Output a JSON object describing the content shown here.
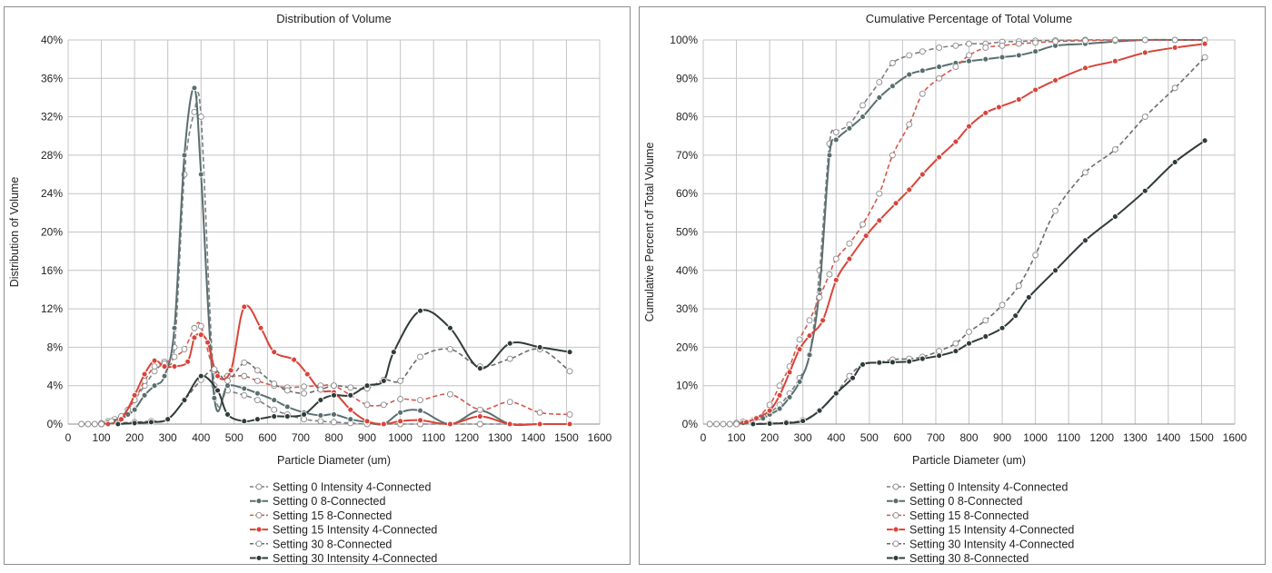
{
  "chart_data": [
    {
      "type": "line",
      "title": "Distribution of Volume",
      "xlabel": "Particle Diameter (um)",
      "ylabel": "Distribution of Volume",
      "xlim": [
        0,
        1600
      ],
      "ylim": [
        0,
        40
      ],
      "x_ticks": [
        "0",
        "100",
        "200",
        "300",
        "400",
        "500",
        "600",
        "700",
        "800",
        "900",
        "1000",
        "1100",
        "1200",
        "1300",
        "1400",
        "1500",
        "1600"
      ],
      "y_ticks": [
        "0%",
        "4%",
        "8%",
        "12%",
        "16%",
        "20%",
        "24%",
        "28%",
        "32%",
        "36%",
        "40%"
      ],
      "grid": true,
      "legend_position": "bottom",
      "series": [
        {
          "name": "Setting 0 Intensity 4-Connected",
          "color": "#7f7f7f",
          "dashed": true,
          "marker": "open",
          "x": [
            40,
            60,
            80,
            100,
            120,
            140,
            160,
            180,
            200,
            230,
            260,
            290,
            320,
            350,
            380,
            400,
            440,
            480,
            530,
            570,
            620,
            660,
            710,
            760,
            800,
            850,
            900,
            950,
            1000,
            1060,
            1150,
            1240,
            1330,
            1420,
            1510
          ],
          "y": [
            0,
            0,
            0,
            0.1,
            0.3,
            0.5,
            0.8,
            1.5,
            2.5,
            4,
            5.5,
            6.5,
            8,
            26,
            32.5,
            32,
            4,
            3.5,
            3,
            2.5,
            1.5,
            1,
            0.5,
            0.3,
            0.2,
            0.1,
            0,
            0,
            0,
            0,
            0,
            0,
            0,
            0,
            0
          ]
        },
        {
          "name": "Setting 0 8-Connected",
          "color": "#5a6e6e",
          "dashed": false,
          "marker": "filled",
          "x": [
            100,
            120,
            140,
            160,
            180,
            200,
            230,
            260,
            290,
            320,
            350,
            380,
            400,
            440,
            480,
            530,
            570,
            620,
            660,
            710,
            760,
            800,
            850,
            900,
            950,
            1000,
            1060,
            1150,
            1240,
            1330,
            1420,
            1510
          ],
          "y": [
            0,
            0.2,
            0.3,
            0.5,
            1,
            1.5,
            3,
            4,
            5,
            10,
            28,
            35,
            26,
            2.7,
            4,
            3.7,
            3.2,
            2.5,
            1.8,
            1.2,
            0.9,
            1,
            0.5,
            0.2,
            0,
            1.2,
            1.4,
            0,
            1.4,
            0,
            0,
            0
          ]
        },
        {
          "name": "Setting 15 8-Connected",
          "color": "#d6574c",
          "dashed": true,
          "marker": "open",
          "x": [
            100,
            130,
            160,
            200,
            230,
            260,
            290,
            320,
            350,
            380,
            400,
            440,
            480,
            530,
            570,
            620,
            660,
            710,
            760,
            800,
            850,
            900,
            950,
            1000,
            1060,
            1150,
            1240,
            1330,
            1420,
            1510
          ],
          "y": [
            0,
            0.3,
            0.8,
            2.5,
            4.5,
            6,
            6.3,
            7,
            7.8,
            10,
            10.2,
            5.5,
            5,
            5,
            4.5,
            4,
            3.8,
            3.9,
            4,
            4,
            3,
            2,
            2,
            2.6,
            2.5,
            3.1,
            1.5,
            2.3,
            1.2,
            1
          ]
        },
        {
          "name": "Setting 15 Intensity 4-Connected",
          "color": "#d9443a",
          "dashed": false,
          "marker": "filled",
          "x": [
            120,
            160,
            200,
            230,
            260,
            290,
            320,
            360,
            380,
            400,
            420,
            450,
            490,
            530,
            580,
            620,
            680,
            720,
            760,
            800,
            850,
            900,
            950,
            1000,
            1060,
            1150,
            1240,
            1330,
            1420,
            1510
          ],
          "y": [
            0,
            0.5,
            3,
            5.2,
            6.6,
            6,
            6,
            6.5,
            9,
            9.3,
            8.5,
            5,
            5.6,
            12.2,
            10,
            7.5,
            6.7,
            5.2,
            3.5,
            3.3,
            1.5,
            0.3,
            0,
            0.3,
            0.4,
            0,
            0.8,
            0,
            0,
            0
          ]
        },
        {
          "name": "Setting 30 8-Connected",
          "color": "#6b6b6b",
          "dashed": true,
          "marker": "open",
          "x": [
            100,
            150,
            200,
            250,
            300,
            350,
            400,
            440,
            480,
            530,
            570,
            620,
            660,
            710,
            760,
            800,
            850,
            900,
            950,
            1000,
            1060,
            1150,
            1240,
            1330,
            1420,
            1510
          ],
          "y": [
            0,
            0.1,
            0.2,
            0.3,
            0.5,
            2.5,
            4.6,
            5.7,
            4.5,
            6.4,
            5.6,
            4.2,
            3.5,
            3.2,
            3.6,
            4,
            3.8,
            3.7,
            4.6,
            4.5,
            7,
            7.8,
            6,
            6.8,
            7.8,
            5.5
          ]
        },
        {
          "name": "Setting 30 Intensity 4-Connected",
          "color": "#2f3b3b",
          "dashed": false,
          "marker": "filled",
          "x": [
            150,
            200,
            250,
            300,
            350,
            400,
            450,
            480,
            530,
            570,
            620,
            660,
            710,
            760,
            800,
            850,
            900,
            950,
            980,
            1060,
            1150,
            1240,
            1330,
            1420,
            1510
          ],
          "y": [
            0,
            0.1,
            0.2,
            0.5,
            2.5,
            5,
            3.5,
            1,
            0.3,
            0.5,
            0.8,
            0.8,
            1,
            2.5,
            3,
            3,
            4,
            4.5,
            7.5,
            11.8,
            10,
            5.8,
            8.4,
            8,
            7.5
          ]
        }
      ]
    },
    {
      "type": "line",
      "title": "Cumulative Percentage of Total Volume",
      "xlabel": "Particle Diameter (um)",
      "ylabel": "Cumulative Percent of Total Volume",
      "xlim": [
        0,
        1600
      ],
      "ylim": [
        0,
        100
      ],
      "x_ticks": [
        "0",
        "100",
        "200",
        "300",
        "400",
        "500",
        "600",
        "700",
        "800",
        "900",
        "1000",
        "1100",
        "1200",
        "1300",
        "1400",
        "1500",
        "1600"
      ],
      "y_ticks": [
        "0%",
        "10%",
        "20%",
        "30%",
        "40%",
        "50%",
        "60%",
        "70%",
        "80%",
        "90%",
        "100%"
      ],
      "grid": true,
      "legend_position": "bottom",
      "series": [
        {
          "name": "Setting 0 Intensity 4-Connected",
          "color": "#7f7f7f",
          "dashed": true,
          "marker": "open",
          "x": [
            20,
            40,
            60,
            80,
            100,
            120,
            150,
            180,
            200,
            230,
            260,
            290,
            320,
            350,
            380,
            400,
            440,
            480,
            530,
            570,
            620,
            660,
            710,
            760,
            800,
            850,
            900,
            950,
            1000,
            1060,
            1150,
            1240,
            1330,
            1420,
            1510
          ],
          "y": [
            0,
            0,
            0,
            0,
            0.3,
            0.6,
            1,
            2,
            3,
            5,
            8,
            12,
            18,
            40,
            73,
            76,
            78,
            83,
            89,
            94,
            96,
            97,
            98,
            98.5,
            99,
            99,
            99.5,
            99.6,
            99.8,
            99.9,
            100,
            100,
            100,
            100,
            100
          ]
        },
        {
          "name": "Setting 0 8-Connected",
          "color": "#5a6e6e",
          "dashed": false,
          "marker": "filled",
          "x": [
            100,
            120,
            150,
            180,
            200,
            230,
            260,
            290,
            320,
            350,
            380,
            400,
            440,
            480,
            530,
            570,
            620,
            660,
            710,
            760,
            800,
            850,
            900,
            950,
            1000,
            1060,
            1150,
            1240,
            1330,
            1420,
            1510
          ],
          "y": [
            0,
            0.3,
            0.8,
            1.5,
            2.5,
            4,
            7,
            11,
            18,
            35,
            70,
            74,
            77,
            80,
            85,
            88,
            91,
            92,
            93,
            94,
            94.5,
            95,
            95.5,
            96,
            97,
            98.5,
            99,
            99.6,
            100,
            100,
            100
          ]
        },
        {
          "name": "Setting 15 8-Connected",
          "color": "#d6574c",
          "dashed": true,
          "marker": "open",
          "x": [
            100,
            130,
            160,
            200,
            230,
            260,
            290,
            320,
            350,
            380,
            400,
            440,
            480,
            530,
            570,
            620,
            660,
            710,
            760,
            800,
            850,
            900,
            950,
            1000,
            1060,
            1150,
            1240,
            1330,
            1420,
            1510
          ],
          "y": [
            0,
            0.5,
            1.5,
            5,
            10,
            15,
            22,
            27,
            33,
            39,
            43,
            47,
            52,
            60,
            70,
            78,
            86,
            90,
            93,
            96,
            98,
            98.5,
            99,
            99.3,
            99.6,
            99.8,
            100,
            100,
            100,
            100
          ]
        },
        {
          "name": "Setting 15 Intensity 4-Connected",
          "color": "#d9443a",
          "dashed": false,
          "marker": "filled",
          "x": [
            100,
            130,
            160,
            200,
            230,
            260,
            290,
            320,
            360,
            400,
            440,
            490,
            530,
            580,
            620,
            660,
            710,
            760,
            800,
            850,
            890,
            950,
            1000,
            1060,
            1150,
            1240,
            1330,
            1420,
            1510
          ],
          "y": [
            0,
            0.5,
            1.5,
            3.5,
            7.5,
            13.5,
            19.5,
            23,
            27,
            37.5,
            43,
            49,
            53,
            57.5,
            61,
            65,
            69.5,
            73.5,
            77.5,
            81,
            82.5,
            84.5,
            87,
            89.5,
            92.7,
            94.5,
            96.7,
            98,
            99
          ]
        },
        {
          "name": "Setting 30 Intensity 4-Connected",
          "color": "#6b6b6b",
          "dashed": true,
          "marker": "open",
          "x": [
            100,
            150,
            200,
            250,
            300,
            350,
            400,
            440,
            480,
            530,
            570,
            620,
            660,
            710,
            760,
            800,
            850,
            900,
            950,
            1000,
            1060,
            1150,
            1240,
            1330,
            1420,
            1510
          ],
          "y": [
            0,
            0.1,
            0.2,
            0.4,
            1,
            3.5,
            8,
            12.5,
            15.5,
            16,
            16.8,
            17,
            17.5,
            19,
            21,
            24,
            27,
            31,
            36,
            44,
            55.5,
            65.5,
            71.5,
            80,
            87.5,
            95.5
          ]
        },
        {
          "name": "Setting 30 8-Connected",
          "color": "#2f3b3b",
          "dashed": false,
          "marker": "filled",
          "x": [
            150,
            200,
            250,
            300,
            350,
            400,
            450,
            480,
            530,
            570,
            620,
            660,
            710,
            760,
            800,
            850,
            900,
            940,
            980,
            1060,
            1150,
            1240,
            1330,
            1420,
            1510
          ],
          "y": [
            0,
            0.1,
            0.3,
            0.8,
            3.5,
            8,
            12,
            15.5,
            16,
            16.1,
            16.3,
            17,
            17.8,
            19,
            21,
            22.8,
            25,
            28.2,
            33,
            40,
            47.8,
            54,
            60.7,
            68.2,
            73.8
          ]
        }
      ]
    }
  ]
}
